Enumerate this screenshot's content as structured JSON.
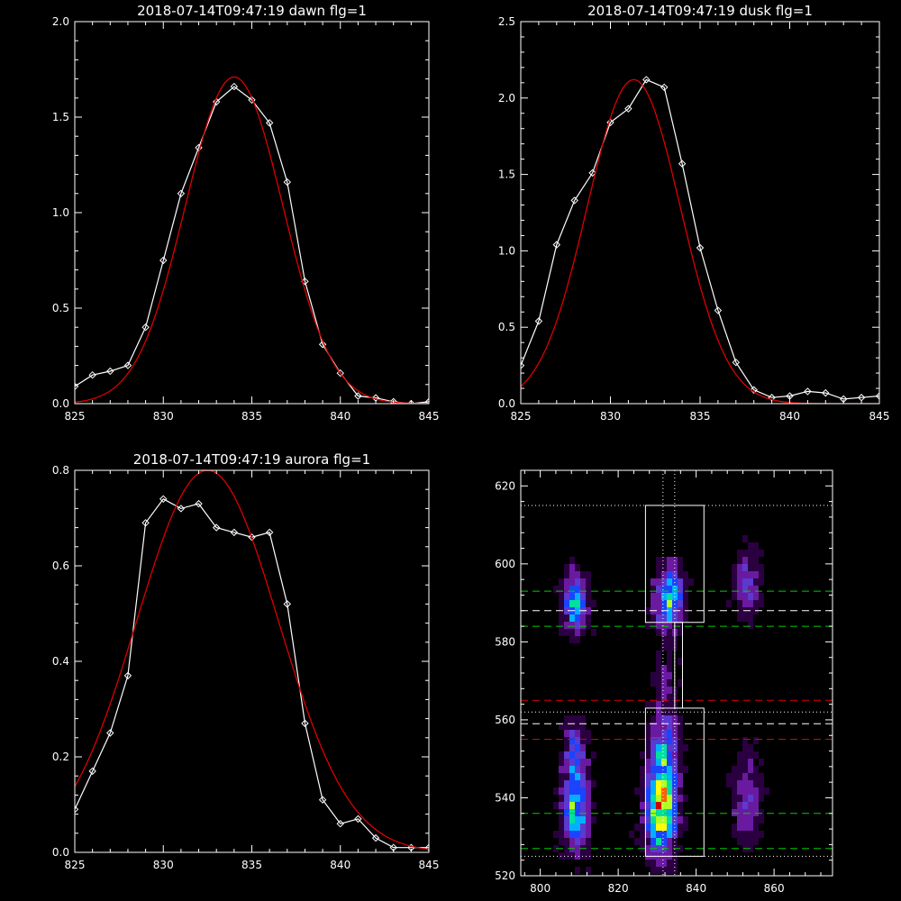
{
  "chart_data": [
    {
      "type": "line",
      "title": "2018-07-14T09:47:19 dawn flg=1",
      "xlim": [
        825,
        845
      ],
      "ylim": [
        0,
        2.0
      ],
      "xticks": [
        825,
        830,
        835,
        840,
        845
      ],
      "yticks": [
        0.0,
        0.5,
        1.0,
        1.5,
        2.0
      ],
      "ytick_labels": [
        "0.0",
        "0.5",
        "1.0",
        "1.5",
        "2.0"
      ],
      "series": [
        {
          "kind": "data",
          "color": "#ffffff",
          "marker": "diamond",
          "x": [
            825,
            826,
            827,
            828,
            829,
            830,
            831,
            832,
            833,
            834,
            835,
            836,
            837,
            838,
            839,
            840,
            841,
            842,
            843,
            844,
            845
          ],
          "y": [
            0.09,
            0.15,
            0.17,
            0.2,
            0.4,
            0.75,
            1.1,
            1.34,
            1.58,
            1.66,
            1.59,
            1.47,
            1.16,
            0.64,
            0.31,
            0.16,
            0.04,
            0.03,
            0.01,
            0.0,
            0.01
          ]
        },
        {
          "kind": "fit",
          "color": "#dd0000",
          "amplitude": 1.71,
          "center": 834.0,
          "sigma": 2.75,
          "offset": 0.0
        }
      ]
    },
    {
      "type": "line",
      "title": "2018-07-14T09:47:19 dusk flg=1",
      "xlim": [
        825,
        845
      ],
      "ylim": [
        0,
        2.5
      ],
      "xticks": [
        825,
        830,
        835,
        840,
        845
      ],
      "yticks": [
        0.0,
        0.5,
        1.0,
        1.5,
        2.0,
        2.5
      ],
      "ytick_labels": [
        "0.0",
        "0.5",
        "1.0",
        "1.5",
        "2.0",
        "2.5"
      ],
      "series": [
        {
          "kind": "data",
          "color": "#ffffff",
          "marker": "diamond",
          "x": [
            825,
            826,
            827,
            828,
            829,
            830,
            831,
            832,
            833,
            834,
            835,
            836,
            837,
            838,
            839,
            840,
            841,
            842,
            843,
            844,
            845
          ],
          "y": [
            0.25,
            0.54,
            1.04,
            1.33,
            1.51,
            1.84,
            1.93,
            2.12,
            2.07,
            1.57,
            1.02,
            0.61,
            0.27,
            0.09,
            0.04,
            0.05,
            0.08,
            0.07,
            0.03,
            0.04,
            0.05
          ]
        },
        {
          "kind": "fit",
          "color": "#dd0000",
          "amplitude": 2.12,
          "center": 831.3,
          "sigma": 2.6,
          "offset": 0.0
        }
      ]
    },
    {
      "type": "line",
      "title": "2018-07-14T09:47:19 aurora flg=1",
      "xlim": [
        825,
        845
      ],
      "ylim": [
        0,
        0.8
      ],
      "xticks": [
        825,
        830,
        835,
        840,
        845
      ],
      "yticks": [
        0.0,
        0.2,
        0.4,
        0.6,
        0.8
      ],
      "ytick_labels": [
        "0.0",
        "0.2",
        "0.4",
        "0.6",
        "0.8"
      ],
      "series": [
        {
          "kind": "data",
          "color": "#ffffff",
          "marker": "diamond",
          "x": [
            825,
            826,
            827,
            828,
            829,
            830,
            831,
            832,
            833,
            834,
            835,
            836,
            837,
            838,
            839,
            840,
            841,
            842,
            843,
            844,
            845
          ],
          "y": [
            0.09,
            0.17,
            0.25,
            0.37,
            0.69,
            0.74,
            0.72,
            0.73,
            0.68,
            0.67,
            0.66,
            0.67,
            0.52,
            0.27,
            0.11,
            0.06,
            0.07,
            0.03,
            0.01,
            0.01,
            0.01
          ]
        },
        {
          "kind": "fit",
          "color": "#dd0000",
          "amplitude": 0.8,
          "center": 832.5,
          "sigma": 4.0,
          "offset": 0.0
        }
      ]
    },
    {
      "type": "heatmap",
      "title": "",
      "xlim": [
        795,
        875
      ],
      "ylim": [
        520,
        624
      ],
      "xticks": [
        800,
        820,
        840,
        860
      ],
      "yticks": [
        520,
        540,
        560,
        580,
        600,
        620
      ],
      "ytick_labels": [
        "520",
        "540",
        "560",
        "580",
        "600",
        "620"
      ],
      "colormap": [
        "#000000",
        "#2a0040",
        "#6a1aa0",
        "#5a3ad0",
        "#1a44ff",
        "#00b0ff",
        "#00e0a0",
        "#b0ff20",
        "#ffff00",
        "#ff6000",
        "#d00000"
      ],
      "blobs": [
        {
          "x": 809,
          "y": 590,
          "sx": 2.2,
          "sy": 5.0,
          "amp": 0.55
        },
        {
          "x": 833,
          "y": 591,
          "sx": 2.5,
          "sy": 5.5,
          "amp": 0.62
        },
        {
          "x": 809,
          "y": 537,
          "sx": 2.3,
          "sy": 7.0,
          "amp": 0.62
        },
        {
          "x": 831,
          "y": 537,
          "sx": 2.8,
          "sy": 8.0,
          "amp": 0.82
        },
        {
          "x": 809,
          "y": 552,
          "sx": 2.0,
          "sy": 5.0,
          "amp": 0.35
        },
        {
          "x": 832,
          "y": 553,
          "sx": 2.4,
          "sy": 6.0,
          "amp": 0.45
        },
        {
          "x": 853,
          "y": 595,
          "sx": 2.5,
          "sy": 6.0,
          "amp": 0.28
        },
        {
          "x": 853,
          "y": 540,
          "sx": 2.5,
          "sy": 8.0,
          "amp": 0.3
        },
        {
          "x": 832,
          "y": 570,
          "sx": 2.0,
          "sy": 5.0,
          "amp": 0.2
        }
      ],
      "boxes": [
        {
          "x0": 827.0,
          "x1": 842.0,
          "y0": 585,
          "y1": 615
        },
        {
          "x0": 827.0,
          "x1": 842.0,
          "y0": 525,
          "y1": 563
        },
        {
          "x0": 834.5,
          "x1": 836.5,
          "y0": 563,
          "y1": 585
        }
      ],
      "vlines_dotted": [
        831.5,
        834.5
      ],
      "hlines": [
        {
          "y": 615,
          "color": "#ffffff",
          "style": "dotted"
        },
        {
          "y": 593,
          "color": "#00cc00",
          "style": "dashed"
        },
        {
          "y": 588,
          "color": "#ffffff",
          "style": "dashed"
        },
        {
          "y": 584,
          "color": "#00cc00",
          "style": "dashed"
        },
        {
          "y": 565,
          "color": "#dd0000",
          "style": "dashed"
        },
        {
          "y": 562,
          "color": "#ffffff",
          "style": "dotted"
        },
        {
          "y": 559,
          "color": "#ffffff",
          "style": "dashed"
        },
        {
          "y": 555,
          "color": "#dd0000",
          "style": "dashed"
        },
        {
          "y": 536,
          "color": "#00cc00",
          "style": "dashed"
        },
        {
          "y": 527,
          "color": "#00cc00",
          "style": "dashed"
        },
        {
          "y": 525,
          "color": "#ffffff",
          "style": "dotted"
        }
      ]
    }
  ]
}
